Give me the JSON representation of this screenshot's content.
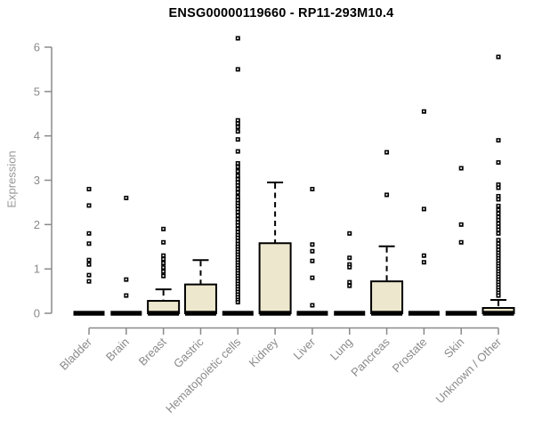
{
  "chart_data": {
    "type": "boxplot",
    "title": "ENSG00000119660 - RP11-293M10.4",
    "ylabel": "Expression",
    "xlabel": "",
    "ylim": [
      0,
      6
    ],
    "yticks": [
      0,
      1,
      2,
      3,
      4,
      5,
      6
    ],
    "grid": false,
    "legend": "none",
    "colors": {
      "box_fill": "#EDE8CD",
      "box_stroke": "#000000",
      "axis": "#8a8a8a",
      "tick_label": "#8a8a8a",
      "title": "#000000",
      "y_axis_label": "#979797",
      "background": "#ffffff"
    },
    "categories": [
      "Bladder",
      "Brain",
      "Breast",
      "Gastric",
      "Hematopoietic cells",
      "Kidney",
      "Liver",
      "Lung",
      "Pancreas",
      "Prostate",
      "Skin",
      "Unknown / Other"
    ],
    "series": [
      {
        "name": "Bladder",
        "q1": 0,
        "median": 0,
        "q3": 0,
        "whisker_low": 0,
        "whisker_high": 0,
        "outliers": [
          2.8,
          2.43,
          1.8,
          1.57,
          1.2,
          1.1,
          0.86,
          0.72
        ]
      },
      {
        "name": "Brain",
        "q1": 0,
        "median": 0,
        "q3": 0,
        "whisker_low": 0,
        "whisker_high": 0,
        "outliers": [
          2.6,
          0.76,
          0.4
        ]
      },
      {
        "name": "Breast",
        "q1": 0,
        "median": 0,
        "q3": 0.28,
        "whisker_low": 0,
        "whisker_high": 0.54,
        "outliers": [
          1.9,
          1.6,
          1.3,
          1.22,
          1.13,
          1.03,
          0.94,
          0.84
        ]
      },
      {
        "name": "Gastric",
        "q1": 0,
        "median": 0,
        "q3": 0.65,
        "whisker_low": 0,
        "whisker_high": 1.2,
        "outliers": []
      },
      {
        "name": "Hematopoietic cells",
        "q1": 0,
        "median": 0,
        "q3": 0,
        "whisker_low": 0,
        "whisker_high": 0,
        "outliers": [
          6.2,
          5.5,
          4.35,
          4.28,
          4.2,
          4.1,
          3.92,
          3.65,
          3.38,
          3.3,
          3.2,
          3.1,
          3.02,
          2.95,
          2.88,
          2.8,
          2.72,
          2.62,
          2.55,
          2.48,
          2.42,
          2.35,
          2.28,
          2.2,
          2.12,
          2.05,
          1.98,
          1.9,
          1.83,
          1.76,
          1.7,
          1.63,
          1.56,
          1.5,
          1.44,
          1.38,
          1.32,
          1.26,
          1.2,
          1.14,
          1.08,
          1.02,
          0.96,
          0.9,
          0.84,
          0.78,
          0.72,
          0.66,
          0.6,
          0.54,
          0.48,
          0.42,
          0.36,
          0.3,
          0.25
        ]
      },
      {
        "name": "Kidney",
        "q1": 0,
        "median": 0,
        "q3": 1.58,
        "whisker_low": 0,
        "whisker_high": 2.95,
        "outliers": []
      },
      {
        "name": "Liver",
        "q1": 0,
        "median": 0,
        "q3": 0,
        "whisker_low": 0,
        "whisker_high": 0,
        "outliers": [
          2.8,
          1.55,
          1.4,
          1.18,
          0.8,
          0.18
        ]
      },
      {
        "name": "Lung",
        "q1": 0,
        "median": 0,
        "q3": 0,
        "whisker_low": 0,
        "whisker_high": 0,
        "outliers": [
          1.8,
          1.25,
          1.1,
          1.04,
          0.7,
          0.62
        ]
      },
      {
        "name": "Pancreas",
        "q1": 0,
        "median": 0,
        "q3": 0.72,
        "whisker_low": 0,
        "whisker_high": 1.51,
        "outliers": [
          3.63,
          2.67
        ]
      },
      {
        "name": "Prostate",
        "q1": 0,
        "median": 0,
        "q3": 0,
        "whisker_low": 0,
        "whisker_high": 0,
        "outliers": [
          4.55,
          2.35,
          1.3,
          1.15
        ]
      },
      {
        "name": "Skin",
        "q1": 0,
        "median": 0,
        "q3": 0,
        "whisker_low": 0,
        "whisker_high": 0,
        "outliers": [
          3.27,
          2.0,
          1.6
        ]
      },
      {
        "name": "Unknown / Other",
        "q1": 0,
        "median": 0,
        "q3": 0.12,
        "whisker_low": 0,
        "whisker_high": 0.3,
        "outliers": [
          5.78,
          3.9,
          3.4,
          2.9,
          2.83,
          2.64,
          2.57,
          2.42,
          2.33,
          2.25,
          2.17,
          2.1,
          2.02,
          1.95,
          1.88,
          1.8,
          1.65,
          1.57,
          1.5,
          1.43,
          1.36,
          1.3,
          1.24,
          1.18,
          1.12,
          1.06,
          1.0,
          0.94,
          0.88,
          0.82,
          0.76,
          0.7,
          0.64,
          0.58,
          0.52,
          0.46,
          0.4
        ]
      }
    ]
  }
}
